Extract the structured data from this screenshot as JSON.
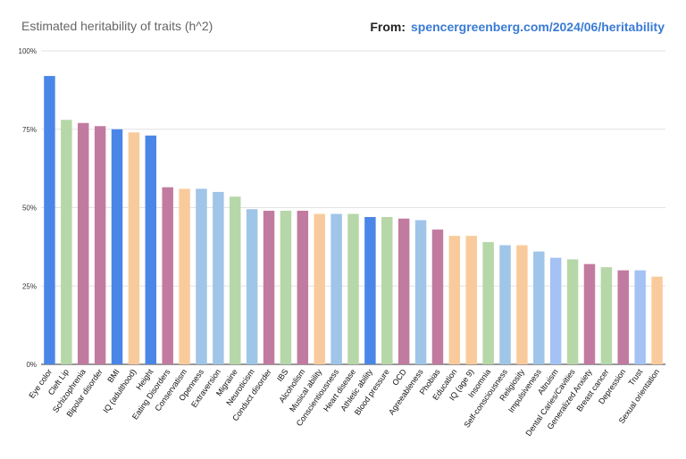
{
  "header": {
    "title": "Estimated heritability of traits (h^2)",
    "source_prefix": "From:",
    "source_link": "spencergreenberg.com/2024/06/heritability"
  },
  "colors": {
    "blue": "#4a86e8",
    "green": "#b6d7a8",
    "mauve": "#c27ba0",
    "peach": "#f9cb9c",
    "lightblue": "#9fc5e8",
    "periwinkle": "#a4c2f4",
    "link": "#3a7bd5",
    "grid": "#d9d9d9"
  },
  "chart_data": {
    "type": "bar",
    "title": "Estimated heritability of traits (h^2)",
    "xlabel": "",
    "ylabel": "",
    "ylim": [
      0,
      100
    ],
    "yticks": [
      {
        "value": 0,
        "label": "0%"
      },
      {
        "value": 25,
        "label": "25%"
      },
      {
        "value": 50,
        "label": "50%"
      },
      {
        "value": 75,
        "label": "75%"
      },
      {
        "value": 100,
        "label": "100%"
      }
    ],
    "grid": true,
    "categories": [
      "Eye color",
      "Cleft Lip",
      "Schizophrenia",
      "Bipolar disorder",
      "BMI",
      "IQ (adulthood)",
      "Height",
      "Eating Disorders",
      "Conservatism",
      "Openness",
      "Extraversion",
      "Migraine",
      "Neuroticism",
      "Conduct disorder",
      "IBS",
      "Alcoholism",
      "Musical ability",
      "Conscientiousness",
      "Heart disease",
      "Athletic ability",
      "Blood pressure",
      "OCD",
      "Agreeableness",
      "Phobias",
      "Education",
      "IQ (age 9)",
      "Insomnia",
      "Self-consciousness",
      "Religiosity",
      "Impulsiveness",
      "Altruism",
      "Dental Caries/Cavities",
      "Generalized Anxiety",
      "Breast cancer",
      "Depression",
      "Trust",
      "Sexual orientation"
    ],
    "values": [
      92,
      78,
      77,
      76,
      75,
      74,
      73,
      56.5,
      56,
      56,
      55,
      53.5,
      49.5,
      49,
      49,
      49,
      48,
      48,
      48,
      47,
      47,
      46.5,
      46,
      43,
      41,
      41,
      39,
      38,
      38,
      36,
      34,
      33.5,
      32,
      31,
      30,
      30,
      28
    ],
    "bar_colors": [
      "blue",
      "green",
      "mauve",
      "mauve",
      "blue",
      "peach",
      "blue",
      "mauve",
      "peach",
      "lightblue",
      "lightblue",
      "green",
      "lightblue",
      "mauve",
      "green",
      "mauve",
      "peach",
      "lightblue",
      "green",
      "blue",
      "green",
      "mauve",
      "lightblue",
      "mauve",
      "peach",
      "peach",
      "green",
      "lightblue",
      "peach",
      "lightblue",
      "periwinkle",
      "green",
      "mauve",
      "green",
      "mauve",
      "periwinkle",
      "peach"
    ]
  }
}
